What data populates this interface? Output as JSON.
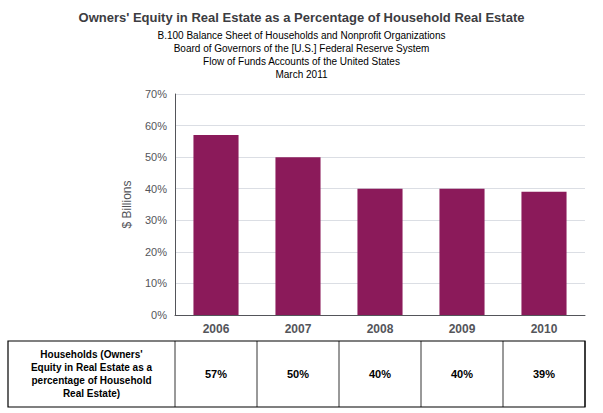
{
  "chart_data": {
    "type": "bar",
    "title": "Owners' Equity in Real Estate as a Percentage of Household Real Estate",
    "subtitle": [
      "B.100 Balance Sheet of Households and Nonprofit Organizations",
      "Board of Governors of the [U.S.] Federal Reserve System",
      "Flow of Funds Accounts of the United States",
      "March 2011"
    ],
    "ylabel": "$ Billions",
    "categories": [
      "2006",
      "2007",
      "2008",
      "2009",
      "2010"
    ],
    "values": [
      0.57,
      0.5,
      0.4,
      0.4,
      0.39
    ],
    "color": "#8B1A5A",
    "ylim": [
      0,
      0.7
    ],
    "yticks": [
      {
        "value": 0.0,
        "label": "0%"
      },
      {
        "value": 0.1,
        "label": "10%"
      },
      {
        "value": 0.2,
        "label": "20%"
      },
      {
        "value": 0.3,
        "label": "30%"
      },
      {
        "value": 0.4,
        "label": "40%"
      },
      {
        "value": 0.5,
        "label": "50%"
      },
      {
        "value": 0.6,
        "label": "60%"
      },
      {
        "value": 0.7,
        "label": "70%"
      }
    ],
    "grid": true,
    "table": {
      "label": "Households (Owners'\nEquity in Real Estate as a\npercentage of Household\nReal Estate)",
      "values": [
        "57%",
        "50%",
        "40%",
        "40%",
        "39%"
      ]
    }
  }
}
